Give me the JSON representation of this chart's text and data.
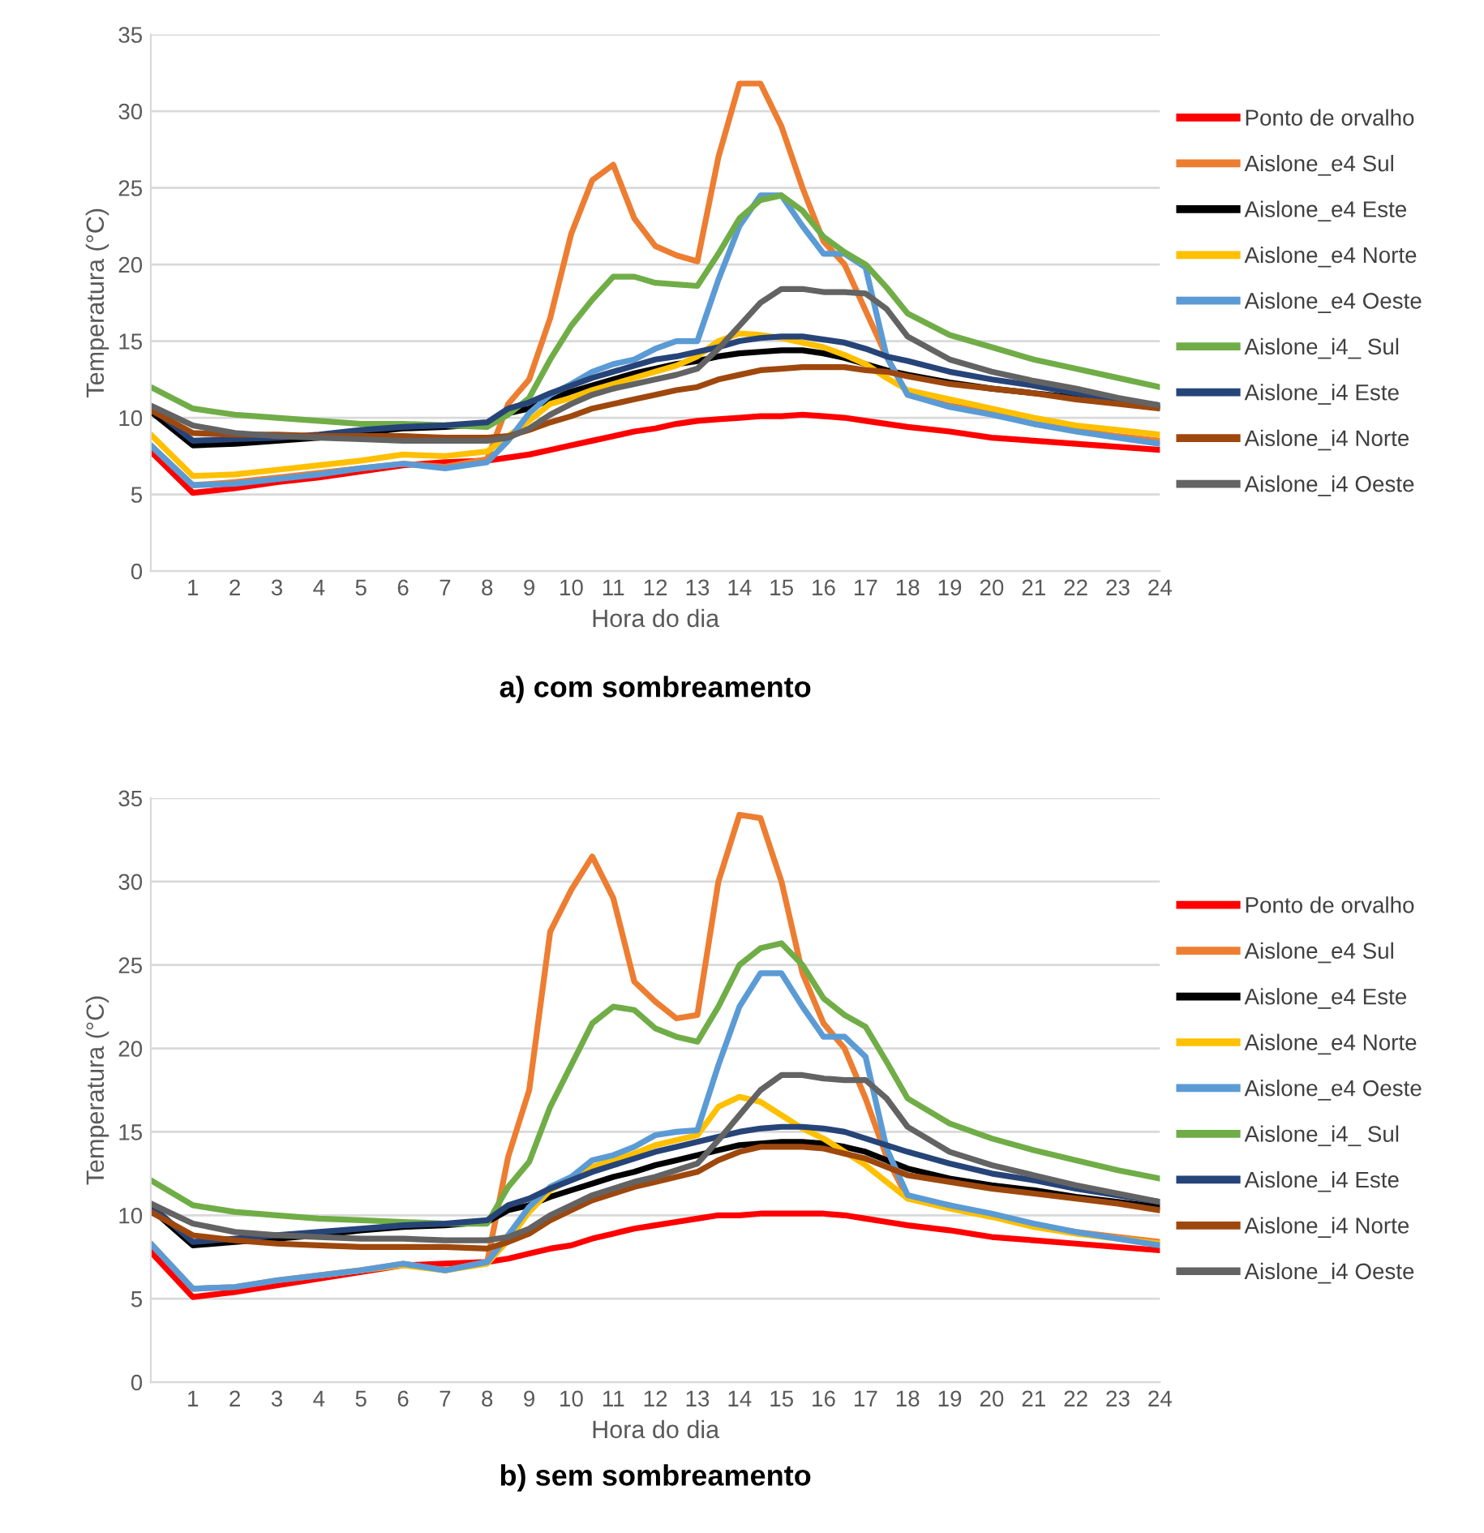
{
  "chart_data": [
    {
      "type": "line",
      "title": "a) com sombreamento",
      "xlabel": "Hora do dia",
      "ylabel": "Temperatura (°C)",
      "xlim": [
        0,
        24
      ],
      "xticks": [
        1,
        2,
        3,
        4,
        5,
        6,
        7,
        8,
        9,
        10,
        11,
        12,
        13,
        14,
        15,
        16,
        17,
        18,
        19,
        20,
        21,
        22,
        23,
        24
      ],
      "ylim": [
        0,
        35
      ],
      "yticks": [
        0,
        5,
        10,
        15,
        20,
        25,
        30,
        35
      ],
      "grid": "y",
      "legend": "right",
      "marker": "none",
      "line_style": "solid",
      "x": [
        0,
        1,
        2,
        3,
        4,
        5,
        6,
        7,
        8,
        8.5,
        9,
        9.5,
        10,
        10.5,
        11,
        11.5,
        12,
        12.5,
        13,
        13.5,
        14,
        14.5,
        15,
        15.5,
        16,
        16.5,
        17,
        17.5,
        18,
        19,
        20,
        21,
        22,
        23,
        24
      ],
      "series": [
        {
          "name": "Ponto de orvalho",
          "color": "#ff0000",
          "values": [
            7.8,
            5.1,
            5.4,
            5.8,
            6.1,
            6.5,
            6.9,
            7.1,
            7.2,
            7.4,
            7.6,
            7.9,
            8.2,
            8.5,
            8.8,
            9.1,
            9.3,
            9.6,
            9.8,
            9.9,
            10.0,
            10.1,
            10.1,
            10.2,
            10.1,
            10.0,
            9.8,
            9.6,
            9.4,
            9.1,
            8.7,
            8.5,
            8.3,
            8.1,
            7.9
          ]
        },
        {
          "name": "Aislone_e4 Sul",
          "color": "#ed7d31",
          "values": [
            8.2,
            5.6,
            5.8,
            6.1,
            6.4,
            6.7,
            7.0,
            6.8,
            7.3,
            10.9,
            12.5,
            16.5,
            22,
            25.5,
            26.5,
            23,
            21.2,
            20.6,
            20.2,
            27,
            31.8,
            31.8,
            29,
            25,
            21.5,
            20,
            17,
            14,
            11.5,
            10.8,
            10.3,
            9.6,
            9.2,
            8.8,
            8.5
          ]
        },
        {
          "name": "Aislone_e4 Este",
          "color": "#000000",
          "values": [
            10.4,
            8.2,
            8.3,
            8.5,
            8.7,
            9.0,
            9.3,
            9.4,
            9.6,
            10.3,
            10.6,
            11.2,
            11.7,
            12.1,
            12.5,
            12.9,
            13.2,
            13.5,
            13.7,
            14.0,
            14.2,
            14.3,
            14.4,
            14.4,
            14.2,
            13.9,
            13.5,
            13.1,
            12.8,
            12.3,
            11.9,
            11.6,
            11.3,
            11.0,
            10.7
          ]
        },
        {
          "name": "Aislone_e4 Norte",
          "color": "#ffc000",
          "values": [
            8.9,
            6.2,
            6.3,
            6.6,
            6.9,
            7.2,
            7.6,
            7.5,
            7.8,
            8.8,
            9.8,
            10.9,
            11.3,
            11.8,
            12.2,
            12.6,
            13.0,
            13.4,
            14.0,
            15.0,
            15.5,
            15.4,
            15.2,
            14.9,
            14.6,
            14.1,
            13.5,
            12.6,
            11.8,
            11.2,
            10.6,
            10.0,
            9.5,
            9.2,
            8.9
          ]
        },
        {
          "name": "Aislone_e4 Oeste",
          "color": "#5b9bd5",
          "values": [
            8.2,
            5.6,
            5.7,
            6.0,
            6.3,
            6.7,
            7.0,
            6.7,
            7.1,
            8.5,
            10.3,
            11.5,
            12.2,
            13.0,
            13.5,
            13.8,
            14.5,
            15.0,
            15.0,
            19,
            22.5,
            24.5,
            24.5,
            22.5,
            20.7,
            20.7,
            19.8,
            14,
            11.5,
            10.7,
            10.2,
            9.6,
            9.1,
            8.7,
            8.3
          ]
        },
        {
          "name": "Aislone_i4_ Sul",
          "color": "#70ad47",
          "values": [
            12,
            10.6,
            10.2,
            10.0,
            9.8,
            9.6,
            9.6,
            9.5,
            9.4,
            10.2,
            11.3,
            13.8,
            16,
            17.7,
            19.2,
            19.2,
            18.8,
            18.7,
            18.6,
            20.7,
            23,
            24.2,
            24.5,
            23.5,
            21.8,
            20.8,
            20,
            18.5,
            16.8,
            15.4,
            14.6,
            13.8,
            13.2,
            12.6,
            12.0
          ]
        },
        {
          "name": "Aislone_i4 Este",
          "color": "#264478",
          "values": [
            10.7,
            8.5,
            8.6,
            8.7,
            8.9,
            9.2,
            9.4,
            9.5,
            9.7,
            10.6,
            11.0,
            11.6,
            12.1,
            12.6,
            13.0,
            13.4,
            13.8,
            14.0,
            14.3,
            14.6,
            15.0,
            15.2,
            15.3,
            15.3,
            15.1,
            14.9,
            14.5,
            14.0,
            13.7,
            13.0,
            12.5,
            12.1,
            11.6,
            11.2,
            10.8
          ]
        },
        {
          "name": "Aislone_i4 Norte",
          "color": "#9e480e",
          "values": [
            10.5,
            9.0,
            8.9,
            8.9,
            8.8,
            8.8,
            8.8,
            8.7,
            8.7,
            8.8,
            9.2,
            9.7,
            10.1,
            10.6,
            10.9,
            11.2,
            11.5,
            11.8,
            12.0,
            12.5,
            12.8,
            13.1,
            13.2,
            13.3,
            13.3,
            13.3,
            13.1,
            13.0,
            12.7,
            12.2,
            11.9,
            11.6,
            11.2,
            10.9,
            10.6
          ]
        },
        {
          "name": "Aislone_i4 Oeste",
          "color": "#636363",
          "values": [
            10.8,
            9.5,
            9.0,
            8.8,
            8.7,
            8.6,
            8.5,
            8.5,
            8.5,
            8.7,
            9.3,
            10.2,
            10.9,
            11.5,
            11.9,
            12.2,
            12.5,
            12.8,
            13.2,
            14.5,
            16.0,
            17.5,
            18.4,
            18.4,
            18.2,
            18.2,
            18.1,
            17.1,
            15.3,
            13.8,
            13.0,
            12.4,
            11.9,
            11.3,
            10.8
          ]
        }
      ]
    },
    {
      "type": "line",
      "title": "b) sem sombreamento",
      "xlabel": "Hora do dia",
      "ylabel": "Temperatura (°C)",
      "xlim": [
        0,
        24
      ],
      "xticks": [
        1,
        2,
        3,
        4,
        5,
        6,
        7,
        8,
        9,
        10,
        11,
        12,
        13,
        14,
        15,
        16,
        17,
        18,
        19,
        20,
        21,
        22,
        23,
        24
      ],
      "ylim": [
        0,
        35
      ],
      "yticks": [
        0,
        5,
        10,
        15,
        20,
        25,
        30,
        35
      ],
      "grid": "y",
      "legend": "right",
      "marker": "none",
      "line_style": "solid",
      "x": [
        0,
        1,
        2,
        3,
        4,
        5,
        6,
        7,
        8,
        8.5,
        9,
        9.5,
        10,
        10.5,
        11,
        11.5,
        12,
        12.5,
        13,
        13.5,
        14,
        14.5,
        15,
        15.5,
        16,
        16.5,
        17,
        17.5,
        18,
        19,
        20,
        21,
        22,
        23,
        24
      ],
      "series": [
        {
          "name": "Ponto de orvalho",
          "color": "#ff0000",
          "values": [
            7.8,
            5.1,
            5.4,
            5.8,
            6.2,
            6.6,
            7.0,
            7.1,
            7.2,
            7.4,
            7.7,
            8.0,
            8.2,
            8.6,
            8.9,
            9.2,
            9.4,
            9.6,
            9.8,
            10.0,
            10.0,
            10.1,
            10.1,
            10.1,
            10.1,
            10.0,
            9.8,
            9.6,
            9.4,
            9.1,
            8.7,
            8.5,
            8.3,
            8.1,
            7.9
          ]
        },
        {
          "name": "Aislone_e4 Sul",
          "color": "#ed7d31",
          "values": [
            8.3,
            5.6,
            5.7,
            6.1,
            6.4,
            6.7,
            7.1,
            6.7,
            7.2,
            13.5,
            17.5,
            27,
            29.5,
            31.5,
            29,
            24,
            22.8,
            21.8,
            22,
            30,
            34,
            33.8,
            30,
            24.5,
            21.5,
            20,
            17,
            13.5,
            11,
            10.6,
            10.0,
            9.4,
            9.0,
            8.7,
            8.4
          ]
        },
        {
          "name": "Aislone_e4 Este",
          "color": "#000000",
          "values": [
            10.4,
            8.2,
            8.4,
            8.6,
            8.8,
            9.1,
            9.3,
            9.4,
            9.6,
            10.3,
            10.6,
            11.1,
            11.5,
            11.9,
            12.3,
            12.6,
            13.0,
            13.3,
            13.6,
            13.9,
            14.2,
            14.3,
            14.4,
            14.4,
            14.3,
            14.1,
            13.8,
            13.3,
            12.8,
            12.2,
            11.8,
            11.5,
            11.1,
            10.8,
            10.5
          ]
        },
        {
          "name": "Aislone_e4 Norte",
          "color": "#ffc000",
          "values": [
            null,
            null,
            null,
            null,
            6.4,
            6.7,
            7.0,
            6.7,
            7.1,
            8.5,
            10.2,
            11.5,
            12.2,
            12.9,
            13.3,
            13.7,
            14.2,
            14.5,
            14.8,
            16.5,
            17.1,
            16.8,
            16.0,
            15.2,
            14.6,
            13.8,
            13.0,
            12.0,
            11.0,
            10.4,
            9.9,
            9.3,
            8.9,
            8.6,
            8.3
          ]
        },
        {
          "name": "Aislone_e4 Oeste",
          "color": "#5b9bd5",
          "values": [
            8.3,
            5.6,
            5.7,
            6.1,
            6.4,
            6.7,
            7.1,
            6.7,
            7.2,
            8.8,
            10.5,
            11.7,
            12.3,
            13.3,
            13.6,
            14.1,
            14.8,
            15.0,
            15.1,
            19,
            22.5,
            24.5,
            24.5,
            22.5,
            20.7,
            20.7,
            19.5,
            14,
            11.2,
            10.6,
            10.1,
            9.5,
            9.0,
            8.6,
            8.2
          ]
        },
        {
          "name": "Aislone_i4_ Sul",
          "color": "#70ad47",
          "values": [
            12.1,
            10.6,
            10.2,
            10.0,
            9.8,
            9.7,
            9.6,
            9.5,
            9.5,
            11.7,
            13.2,
            16.5,
            19,
            21.5,
            22.5,
            22.3,
            21.2,
            20.7,
            20.4,
            22.5,
            25,
            26,
            26.3,
            25,
            23,
            22,
            21.3,
            19.2,
            17,
            15.5,
            14.6,
            13.9,
            13.3,
            12.7,
            12.2
          ]
        },
        {
          "name": "Aislone_i4 Este",
          "color": "#264478",
          "values": [
            10.6,
            8.4,
            8.6,
            8.8,
            9.0,
            9.2,
            9.4,
            9.5,
            9.7,
            10.6,
            11.0,
            11.6,
            12.1,
            12.6,
            13.0,
            13.4,
            13.8,
            14.1,
            14.4,
            14.7,
            15.0,
            15.2,
            15.3,
            15.3,
            15.2,
            15.0,
            14.6,
            14.2,
            13.8,
            13.1,
            12.5,
            12.1,
            11.6,
            11.2,
            10.8
          ]
        },
        {
          "name": "Aislone_i4 Norte",
          "color": "#9e480e",
          "values": [
            10.2,
            8.8,
            8.5,
            8.3,
            8.2,
            8.1,
            8.1,
            8.1,
            8.0,
            8.4,
            8.9,
            9.7,
            10.3,
            10.9,
            11.3,
            11.7,
            12.0,
            12.3,
            12.6,
            13.3,
            13.8,
            14.1,
            14.1,
            14.1,
            14.0,
            13.7,
            13.4,
            12.9,
            12.4,
            12.0,
            11.6,
            11.3,
            11.0,
            10.7,
            10.3
          ]
        },
        {
          "name": "Aislone_i4 Oeste",
          "color": "#636363",
          "values": [
            10.7,
            9.5,
            9.0,
            8.8,
            8.7,
            8.6,
            8.6,
            8.5,
            8.5,
            8.7,
            9.2,
            10.0,
            10.6,
            11.2,
            11.6,
            12.0,
            12.3,
            12.7,
            13.1,
            14.5,
            16.0,
            17.5,
            18.4,
            18.4,
            18.2,
            18.1,
            18.1,
            17.0,
            15.3,
            13.8,
            13.0,
            12.4,
            11.8,
            11.3,
            10.8
          ]
        }
      ]
    }
  ]
}
